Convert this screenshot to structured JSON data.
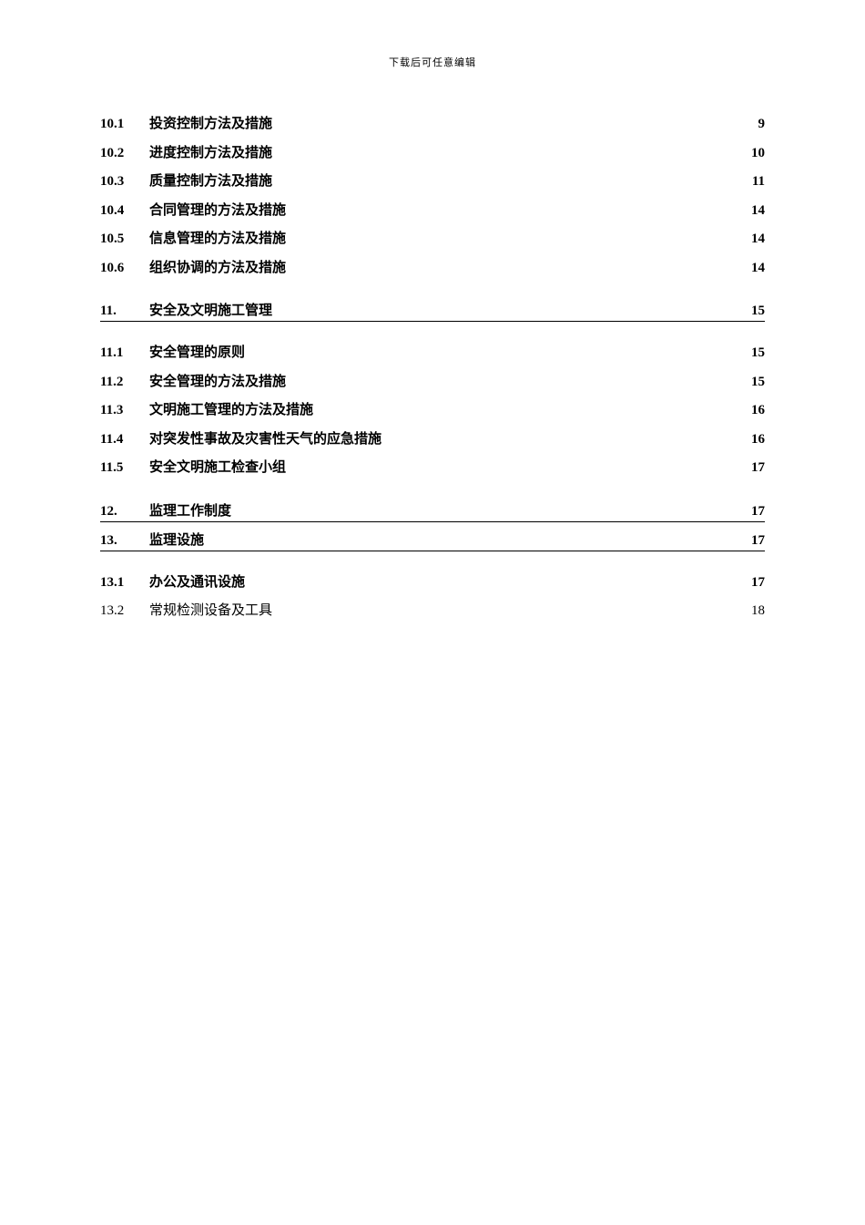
{
  "header_note": "下载后可任意编辑",
  "group1": {
    "items": [
      {
        "num": "10.1",
        "title": "投资控制方法及措施",
        "page": "9",
        "bold": true
      },
      {
        "num": "10.2",
        "title": "进度控制方法及措施",
        "page": "10",
        "bold": true
      },
      {
        "num": "10.3",
        "title": "质量控制方法及措施",
        "page": "11",
        "bold": true
      },
      {
        "num": "10.4",
        "title": "合同管理的方法及措施",
        "page": "14",
        "bold": true
      },
      {
        "num": "10.5",
        "title": "信息管理的方法及措施",
        "page": "14",
        "bold": true
      },
      {
        "num": "10.6",
        "title": "组织协调的方法及措施",
        "page": "14",
        "bold": true
      }
    ]
  },
  "section11": {
    "num": "11.",
    "title": "安全及文明施工管理",
    "page": "15",
    "items": [
      {
        "num": "11.1",
        "title": "安全管理的原则",
        "page": "15",
        "bold": true
      },
      {
        "num": "11.2",
        "title": "安全管理的方法及措施",
        "page": "15",
        "bold": true
      },
      {
        "num": "11.3",
        "title": "文明施工管理的方法及措施",
        "page": "16",
        "bold": true
      },
      {
        "num": "11.4",
        "title": "对突发性事故及灾害性天气的应急措施",
        "page": "16",
        "bold": true
      },
      {
        "num": "11.5",
        "title": "安全文明施工检查小组",
        "page": "17",
        "bold": true
      }
    ]
  },
  "section12": {
    "num": "12.",
    "title": "监理工作制度",
    "page": "17"
  },
  "section13": {
    "num": "13.",
    "title": "监理设施",
    "page": "17",
    "items": [
      {
        "num": "13.1",
        "title": "办公及通讯设施",
        "page": "17",
        "bold": true
      },
      {
        "num": "13.2",
        "title": "常规检测设备及工具",
        "page": "18",
        "bold": false
      }
    ]
  }
}
